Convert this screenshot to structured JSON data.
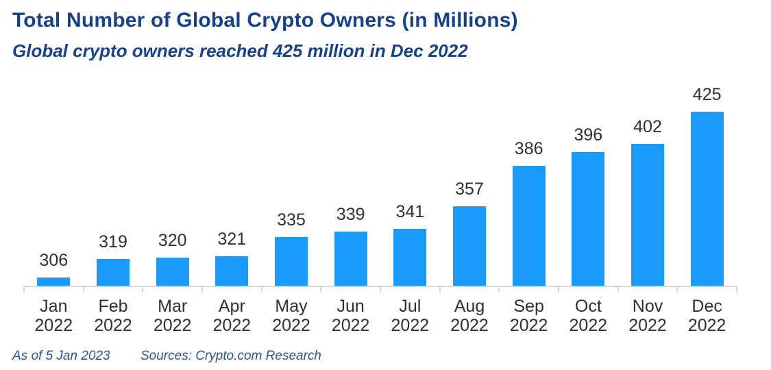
{
  "header": {
    "title": "Total Number of Global Crypto Owners (in Millions)",
    "subtitle": "Global crypto owners reached 425 million in Dec 2022"
  },
  "footer": {
    "as_of": "As of 5 Jan 2023",
    "sources": "Sources: Crypto.com Research"
  },
  "colors": {
    "bar": "#189BFA",
    "title": "#16418C",
    "subtitle": "#16418C",
    "footnote": "#2E5394",
    "value_label": "#303030",
    "axis_label": "#303030",
    "axis_line": "#D8D8D8",
    "background": "#FFFFFF"
  },
  "chart_data": {
    "type": "bar",
    "title": "Total Number of Global Crypto Owners (in Millions)",
    "subtitle": "Global crypto owners reached 425 million in Dec 2022",
    "categories": [
      "Jan 2022",
      "Feb 2022",
      "Mar 2022",
      "Apr 2022",
      "May 2022",
      "Jun 2022",
      "Jul 2022",
      "Aug 2022",
      "Sep 2022",
      "Oct 2022",
      "Nov 2022",
      "Dec 2022"
    ],
    "values": [
      306,
      319,
      320,
      321,
      335,
      339,
      341,
      357,
      386,
      396,
      402,
      425
    ],
    "xlabel": "",
    "ylabel": "",
    "ylim": [
      300,
      430
    ],
    "grid": false,
    "legend": false,
    "data_labels": true,
    "y_axis_visible": false,
    "annotations": [
      "As of 5 Jan 2023",
      "Sources: Crypto.com Research"
    ]
  }
}
